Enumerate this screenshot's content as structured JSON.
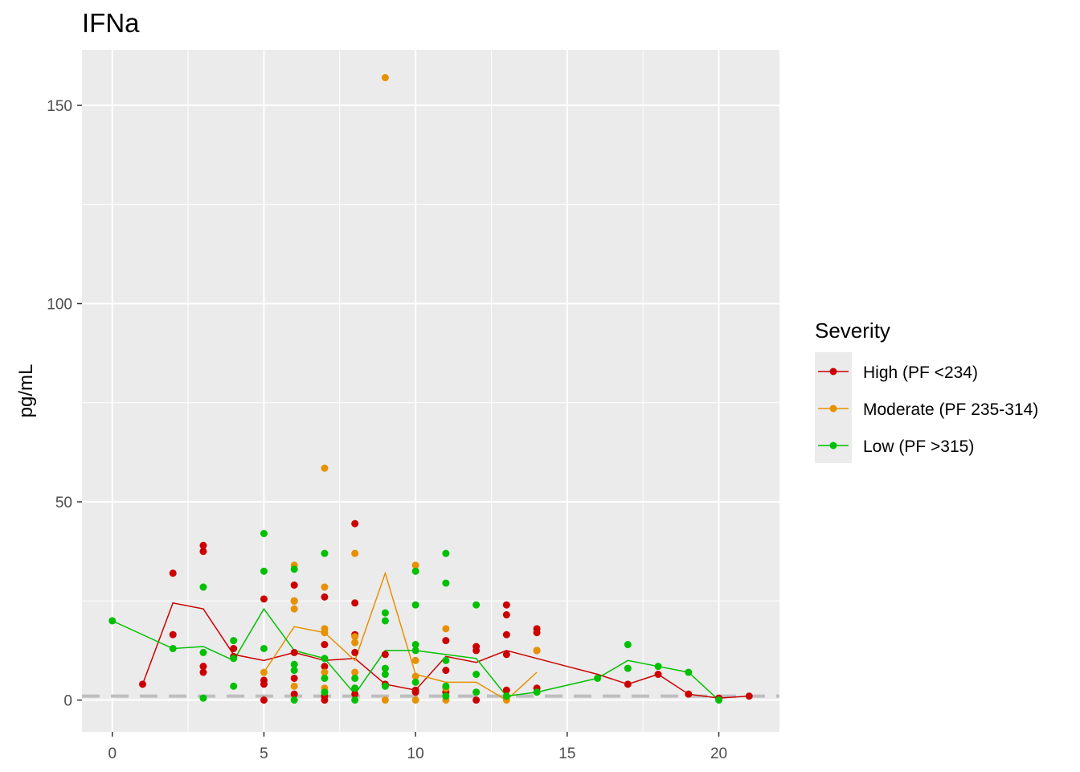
{
  "chart_data": {
    "type": "scatter",
    "title": "IFNa",
    "xlabel": "",
    "ylabel": "pg/mL",
    "xlim": [
      -1,
      22
    ],
    "ylim": [
      -8,
      164
    ],
    "x_ticks": [
      0,
      5,
      10,
      15,
      20
    ],
    "y_ticks": [
      0,
      50,
      100,
      150
    ],
    "grid": true,
    "background": "#ebebeb",
    "reference_line": {
      "y": 1,
      "style": "dashed",
      "color": "#bebebe"
    },
    "legend": {
      "title": "Severity",
      "position": "right"
    },
    "series": [
      {
        "name": "High (PF <234)",
        "color": "#cc0000",
        "points": [
          [
            1,
            4
          ],
          [
            2,
            32
          ],
          [
            2,
            16.5
          ],
          [
            3,
            39
          ],
          [
            3,
            37.5
          ],
          [
            3,
            8.5
          ],
          [
            3,
            7
          ],
          [
            4,
            13
          ],
          [
            4,
            11
          ],
          [
            5,
            25.5
          ],
          [
            5,
            5
          ],
          [
            5,
            4
          ],
          [
            5,
            0
          ],
          [
            6,
            29
          ],
          [
            6,
            25
          ],
          [
            6,
            12
          ],
          [
            6,
            5.5
          ],
          [
            6,
            1.5
          ],
          [
            7,
            26
          ],
          [
            7,
            14
          ],
          [
            7,
            8.5
          ],
          [
            7,
            1
          ],
          [
            7,
            0
          ],
          [
            8,
            44.5
          ],
          [
            8,
            24.5
          ],
          [
            8,
            16.5
          ],
          [
            8,
            12
          ],
          [
            8,
            3
          ],
          [
            8,
            1.5
          ],
          [
            9,
            11.5
          ],
          [
            9,
            4
          ],
          [
            10,
            2
          ],
          [
            10,
            2.5
          ],
          [
            11,
            15
          ],
          [
            11,
            7.5
          ],
          [
            11,
            2
          ],
          [
            12,
            13.5
          ],
          [
            12,
            12.5
          ],
          [
            12,
            0
          ],
          [
            13,
            24
          ],
          [
            13,
            21.5
          ],
          [
            13,
            16.5
          ],
          [
            13,
            11.5
          ],
          [
            13,
            2.5
          ],
          [
            14,
            18
          ],
          [
            14,
            17
          ],
          [
            14,
            12.5
          ],
          [
            14,
            3
          ],
          [
            17,
            4
          ],
          [
            18,
            6.5
          ],
          [
            19,
            1.5
          ],
          [
            20,
            0.5
          ],
          [
            21,
            1
          ]
        ],
        "line": [
          [
            1,
            4
          ],
          [
            2,
            24.5
          ],
          [
            3,
            23
          ],
          [
            4,
            11.5
          ],
          [
            5,
            10
          ],
          [
            6,
            12
          ],
          [
            7,
            10
          ],
          [
            8,
            10.5
          ],
          [
            9,
            4
          ],
          [
            10,
            2.5
          ],
          [
            11,
            11
          ],
          [
            12,
            9.5
          ],
          [
            13,
            12.5
          ],
          [
            14,
            10.5
          ],
          [
            15,
            8.5
          ],
          [
            16,
            6.5
          ],
          [
            17,
            4
          ],
          [
            18,
            6.5
          ],
          [
            19,
            1.5
          ],
          [
            20,
            0.5
          ],
          [
            21,
            1
          ]
        ]
      },
      {
        "name": "Moderate (PF 235-314)",
        "color": "#e69100",
        "points": [
          [
            5,
            7
          ],
          [
            6,
            34
          ],
          [
            6,
            25
          ],
          [
            6,
            23
          ],
          [
            6,
            3.5
          ],
          [
            7,
            58.5
          ],
          [
            7,
            28.5
          ],
          [
            7,
            18
          ],
          [
            7,
            17
          ],
          [
            7,
            7
          ],
          [
            7,
            3
          ],
          [
            8,
            37
          ],
          [
            8,
            16
          ],
          [
            8,
            14.5
          ],
          [
            8,
            7
          ],
          [
            9,
            157
          ],
          [
            9,
            0
          ],
          [
            10,
            34
          ],
          [
            10,
            10
          ],
          [
            10,
            6
          ],
          [
            10,
            0
          ],
          [
            11,
            18
          ],
          [
            11,
            3
          ],
          [
            11,
            0
          ],
          [
            13,
            0
          ],
          [
            14,
            12.5
          ]
        ],
        "line": [
          [
            5,
            7
          ],
          [
            6,
            18.5
          ],
          [
            7,
            17
          ],
          [
            8,
            10
          ],
          [
            9,
            32
          ],
          [
            10,
            6.5
          ],
          [
            11,
            4.5
          ],
          [
            12,
            4.5
          ],
          [
            13,
            0
          ],
          [
            14,
            7
          ]
        ]
      },
      {
        "name": "Low (PF >315)",
        "color": "#00c000",
        "points": [
          [
            0,
            20
          ],
          [
            2,
            13
          ],
          [
            3,
            28.5
          ],
          [
            3,
            12
          ],
          [
            3,
            0.5
          ],
          [
            4,
            15
          ],
          [
            4,
            10.5
          ],
          [
            4,
            3.5
          ],
          [
            5,
            42
          ],
          [
            5,
            32.5
          ],
          [
            5,
            13
          ],
          [
            6,
            33
          ],
          [
            6,
            9
          ],
          [
            6,
            7.5
          ],
          [
            6,
            0
          ],
          [
            7,
            37
          ],
          [
            7,
            10.5
          ],
          [
            7,
            5.5
          ],
          [
            7,
            2
          ],
          [
            8,
            5.5
          ],
          [
            8,
            3
          ],
          [
            8,
            0
          ],
          [
            9,
            22
          ],
          [
            9,
            20
          ],
          [
            9,
            8
          ],
          [
            9,
            6.5
          ],
          [
            9,
            3.5
          ],
          [
            10,
            32.5
          ],
          [
            10,
            24
          ],
          [
            10,
            14
          ],
          [
            10,
            12.5
          ],
          [
            10,
            4.5
          ],
          [
            11,
            37
          ],
          [
            11,
            29.5
          ],
          [
            11,
            10
          ],
          [
            11,
            3.5
          ],
          [
            11,
            1
          ],
          [
            12,
            24
          ],
          [
            12,
            6.5
          ],
          [
            12,
            2
          ],
          [
            13,
            1
          ],
          [
            14,
            2
          ],
          [
            16,
            5.5
          ],
          [
            17,
            14
          ],
          [
            17,
            8
          ],
          [
            18,
            8.5
          ],
          [
            19,
            7
          ],
          [
            20,
            0
          ]
        ],
        "line": [
          [
            0,
            20
          ],
          [
            2,
            13
          ],
          [
            3,
            13.5
          ],
          [
            4,
            10
          ],
          [
            5,
            23
          ],
          [
            6,
            12.5
          ],
          [
            7,
            10.5
          ],
          [
            8,
            1.5
          ],
          [
            9,
            12.5
          ],
          [
            10,
            12.5
          ],
          [
            11,
            11.5
          ],
          [
            12,
            10.5
          ],
          [
            13,
            1
          ],
          [
            14,
            2
          ],
          [
            16,
            5.5
          ],
          [
            17,
            10
          ],
          [
            18,
            8.5
          ],
          [
            19,
            7
          ],
          [
            20,
            0
          ]
        ]
      }
    ]
  }
}
